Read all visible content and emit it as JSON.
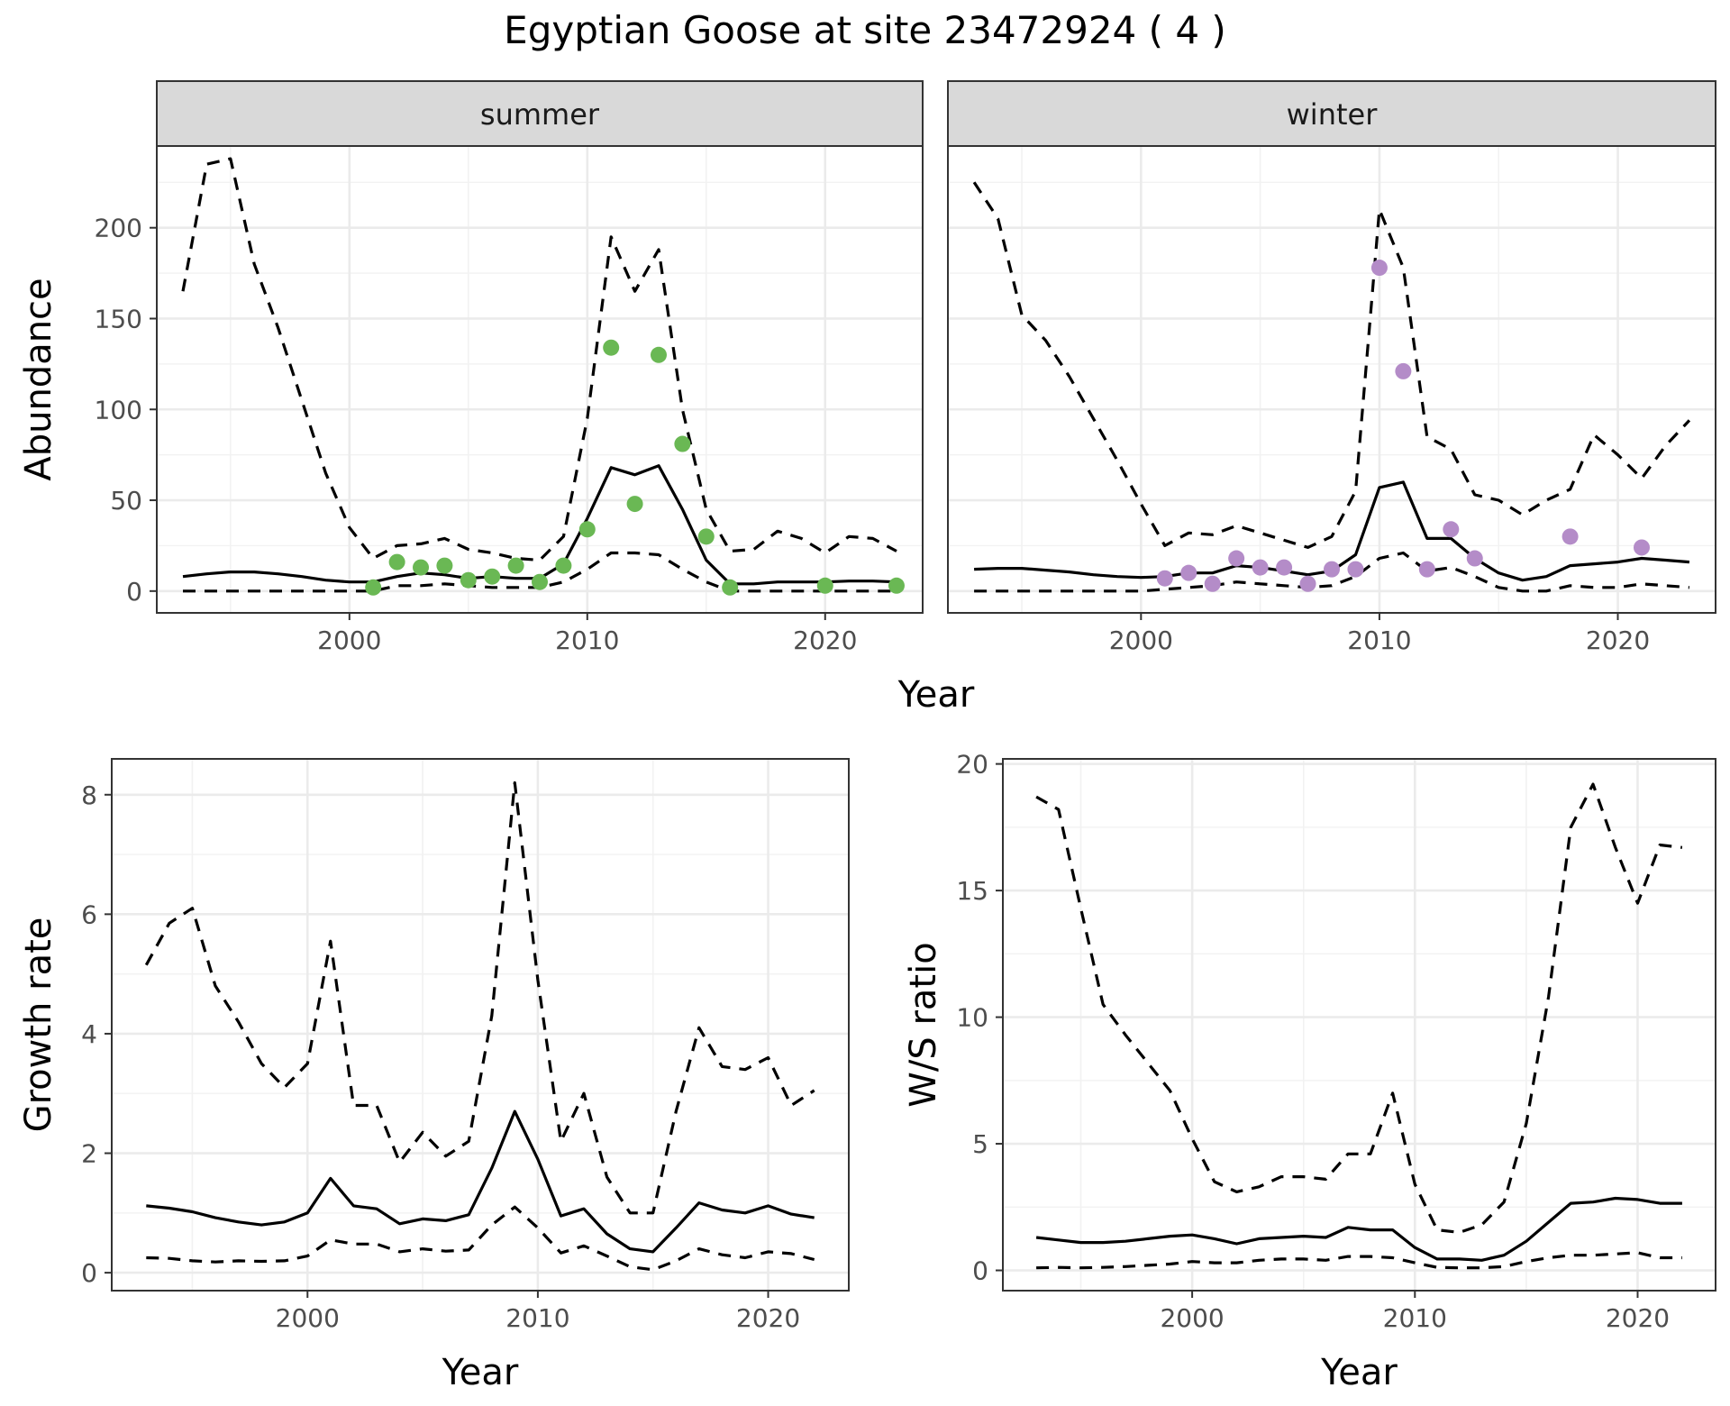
{
  "figure": {
    "title": "Egyptian Goose at site 23472924 ( 4 )",
    "colors": {
      "summer_points": "#6ab854",
      "winter_points": "#b48cc8",
      "lines": "#000000"
    }
  },
  "chart_data": [
    {
      "type": "line",
      "panel": "summer",
      "strip_label": "summer",
      "xlabel": "",
      "ylabel": "Abundance",
      "xlim": [
        1991.9,
        2024.1
      ],
      "ylim": [
        -12,
        245
      ],
      "xticks": [
        2000,
        2010,
        2020
      ],
      "yticks": [
        0,
        50,
        100,
        150,
        200
      ],
      "x": [
        1993,
        1994,
        1995,
        1996,
        1997,
        1998,
        1999,
        2000,
        2001,
        2002,
        2003,
        2004,
        2005,
        2006,
        2007,
        2008,
        2009,
        2010,
        2011,
        2012,
        2013,
        2014,
        2015,
        2016,
        2017,
        2018,
        2019,
        2020,
        2021,
        2022,
        2023
      ],
      "series": [
        {
          "role": "upper",
          "style": "dashed",
          "values": [
            165,
            235,
            238,
            180,
            145,
            105,
            65,
            35,
            18,
            25,
            26,
            29,
            23,
            21,
            18,
            17,
            30,
            95,
            195,
            165,
            188,
            100,
            45,
            22,
            23,
            33,
            29,
            21,
            30,
            29,
            22
          ]
        },
        {
          "role": "mean",
          "style": "solid",
          "values": [
            8,
            9.5,
            10.5,
            10.5,
            9.5,
            8,
            6,
            5,
            5,
            8,
            10,
            9,
            7,
            8,
            7,
            7,
            15,
            40,
            68,
            64,
            69,
            45,
            17,
            4,
            4,
            5,
            5,
            5,
            5.5,
            5.5,
            5
          ]
        },
        {
          "role": "lower",
          "style": "dashed",
          "values": [
            0,
            0,
            0,
            0,
            0,
            0,
            0,
            0,
            0,
            3,
            3,
            4,
            3,
            2,
            2,
            2,
            5,
            12,
            21,
            21,
            20,
            12,
            5,
            0,
            0,
            0,
            0,
            0,
            0,
            0,
            0
          ]
        }
      ],
      "points": {
        "x": [
          2001,
          2002,
          2003,
          2004,
          2005,
          2006,
          2007,
          2008,
          2009,
          2010,
          2011,
          2012,
          2013,
          2014,
          2015,
          2016,
          2020,
          2023
        ],
        "y": [
          2,
          16,
          13,
          14,
          6,
          8,
          14,
          5,
          14,
          34,
          134,
          48,
          130,
          81,
          30,
          2,
          3,
          3
        ]
      }
    },
    {
      "type": "line",
      "panel": "winter",
      "strip_label": "winter",
      "xlabel": "",
      "ylabel": "",
      "xlim": [
        1991.9,
        2024.1
      ],
      "ylim": [
        -12,
        245
      ],
      "xticks": [
        2000,
        2010,
        2020
      ],
      "yticks": [
        0,
        50,
        100,
        150,
        200
      ],
      "x": [
        1993,
        1994,
        1995,
        1996,
        1997,
        1998,
        1999,
        2000,
        2001,
        2002,
        2003,
        2004,
        2005,
        2006,
        2007,
        2008,
        2009,
        2010,
        2011,
        2012,
        2013,
        2014,
        2015,
        2016,
        2017,
        2018,
        2019,
        2020,
        2021,
        2022,
        2023
      ],
      "series": [
        {
          "role": "upper",
          "style": "dashed",
          "values": [
            225,
            205,
            152,
            138,
            118,
            95,
            72,
            48,
            25,
            32,
            31,
            36,
            32,
            28,
            24,
            30,
            55,
            210,
            178,
            85,
            78,
            53,
            50,
            42,
            50,
            56,
            86,
            75,
            62,
            80,
            94
          ]
        },
        {
          "role": "mean",
          "style": "solid",
          "values": [
            12,
            12.5,
            12.5,
            11.5,
            10.5,
            9,
            8,
            7.5,
            8,
            10,
            10,
            14,
            13,
            11,
            9,
            11,
            20,
            57,
            60,
            29,
            29,
            18,
            10,
            6,
            8,
            14,
            15,
            16,
            18,
            17,
            16
          ]
        },
        {
          "role": "lower",
          "style": "dashed",
          "values": [
            0,
            0,
            0,
            0,
            0,
            0,
            0,
            0,
            1,
            2,
            3,
            5,
            4,
            3,
            2,
            3,
            8,
            18,
            21,
            11,
            13,
            8,
            2,
            0,
            0,
            3,
            2,
            2,
            4,
            3,
            2
          ]
        }
      ],
      "points": {
        "x": [
          2001,
          2002,
          2003,
          2004,
          2005,
          2006,
          2007,
          2008,
          2009,
          2010,
          2011,
          2012,
          2013,
          2014,
          2018,
          2021
        ],
        "y": [
          7,
          10,
          4,
          18,
          13,
          13,
          4,
          12,
          12,
          178,
          121,
          12,
          34,
          18,
          30,
          24
        ]
      }
    },
    {
      "type": "line",
      "panel": "growth",
      "xlabel": "Year",
      "ylabel": "Growth rate",
      "xlim": [
        1991.5,
        2023.5
      ],
      "ylim": [
        -0.3,
        8.6
      ],
      "xticks": [
        2000,
        2010,
        2020
      ],
      "yticks": [
        0,
        2,
        4,
        6,
        8
      ],
      "x": [
        1993,
        1994,
        1995,
        1996,
        1997,
        1998,
        1999,
        2000,
        2001,
        2002,
        2003,
        2004,
        2005,
        2006,
        2007,
        2008,
        2009,
        2010,
        2011,
        2012,
        2013,
        2014,
        2015,
        2016,
        2017,
        2018,
        2019,
        2020,
        2021,
        2022
      ],
      "series": [
        {
          "role": "upper",
          "style": "dashed",
          "values": [
            5.15,
            5.85,
            6.1,
            4.8,
            4.2,
            3.5,
            3.1,
            3.5,
            5.55,
            2.8,
            2.8,
            1.85,
            2.35,
            1.95,
            2.2,
            4.3,
            8.2,
            4.9,
            2.2,
            3.0,
            1.6,
            1.0,
            1.0,
            2.7,
            4.1,
            3.45,
            3.4,
            3.6,
            2.8,
            3.05
          ]
        },
        {
          "role": "mean",
          "style": "solid",
          "values": [
            1.12,
            1.08,
            1.02,
            0.92,
            0.85,
            0.8,
            0.85,
            1.0,
            1.58,
            1.12,
            1.07,
            0.82,
            0.9,
            0.87,
            0.97,
            1.75,
            2.7,
            1.9,
            0.95,
            1.07,
            0.65,
            0.4,
            0.35,
            0.75,
            1.17,
            1.05,
            1.0,
            1.12,
            0.98,
            0.92
          ]
        },
        {
          "role": "lower",
          "style": "dashed",
          "values": [
            0.25,
            0.24,
            0.2,
            0.18,
            0.2,
            0.19,
            0.2,
            0.28,
            0.55,
            0.48,
            0.48,
            0.35,
            0.4,
            0.36,
            0.38,
            0.8,
            1.1,
            0.75,
            0.33,
            0.45,
            0.28,
            0.1,
            0.05,
            0.2,
            0.4,
            0.3,
            0.25,
            0.35,
            0.32,
            0.22
          ]
        }
      ]
    },
    {
      "type": "line",
      "panel": "ratio",
      "xlabel": "Year",
      "ylabel": "W/S ratio",
      "xlim": [
        1991.5,
        2023.5
      ],
      "ylim": [
        -0.8,
        20.2
      ],
      "xticks": [
        2000,
        2010,
        2020
      ],
      "yticks": [
        0,
        5,
        10,
        15,
        20
      ],
      "x": [
        1993,
        1994,
        1995,
        1996,
        1997,
        1998,
        1999,
        2000,
        2001,
        2002,
        2003,
        2004,
        2005,
        2006,
        2007,
        2008,
        2009,
        2010,
        2011,
        2012,
        2013,
        2014,
        2015,
        2016,
        2017,
        2018,
        2019,
        2020,
        2021,
        2022
      ],
      "series": [
        {
          "role": "upper",
          "style": "dashed",
          "values": [
            18.7,
            18.2,
            14.3,
            10.5,
            9.3,
            8.2,
            7.1,
            5.2,
            3.5,
            3.1,
            3.3,
            3.7,
            3.7,
            3.6,
            4.6,
            4.6,
            7.0,
            3.4,
            1.6,
            1.5,
            1.8,
            2.7,
            5.8,
            10.8,
            17.5,
            19.2,
            16.7,
            14.5,
            16.8,
            16.7
          ]
        },
        {
          "role": "mean",
          "style": "solid",
          "values": [
            1.3,
            1.2,
            1.1,
            1.1,
            1.15,
            1.25,
            1.35,
            1.4,
            1.25,
            1.05,
            1.25,
            1.3,
            1.35,
            1.3,
            1.7,
            1.6,
            1.6,
            0.9,
            0.45,
            0.45,
            0.4,
            0.6,
            1.15,
            1.9,
            2.65,
            2.7,
            2.85,
            2.8,
            2.65,
            2.65
          ]
        },
        {
          "role": "lower",
          "style": "dashed",
          "values": [
            0.1,
            0.12,
            0.1,
            0.12,
            0.15,
            0.2,
            0.25,
            0.35,
            0.3,
            0.3,
            0.4,
            0.45,
            0.45,
            0.4,
            0.55,
            0.55,
            0.5,
            0.3,
            0.12,
            0.1,
            0.1,
            0.15,
            0.35,
            0.5,
            0.6,
            0.6,
            0.65,
            0.7,
            0.5,
            0.5
          ]
        }
      ]
    }
  ]
}
